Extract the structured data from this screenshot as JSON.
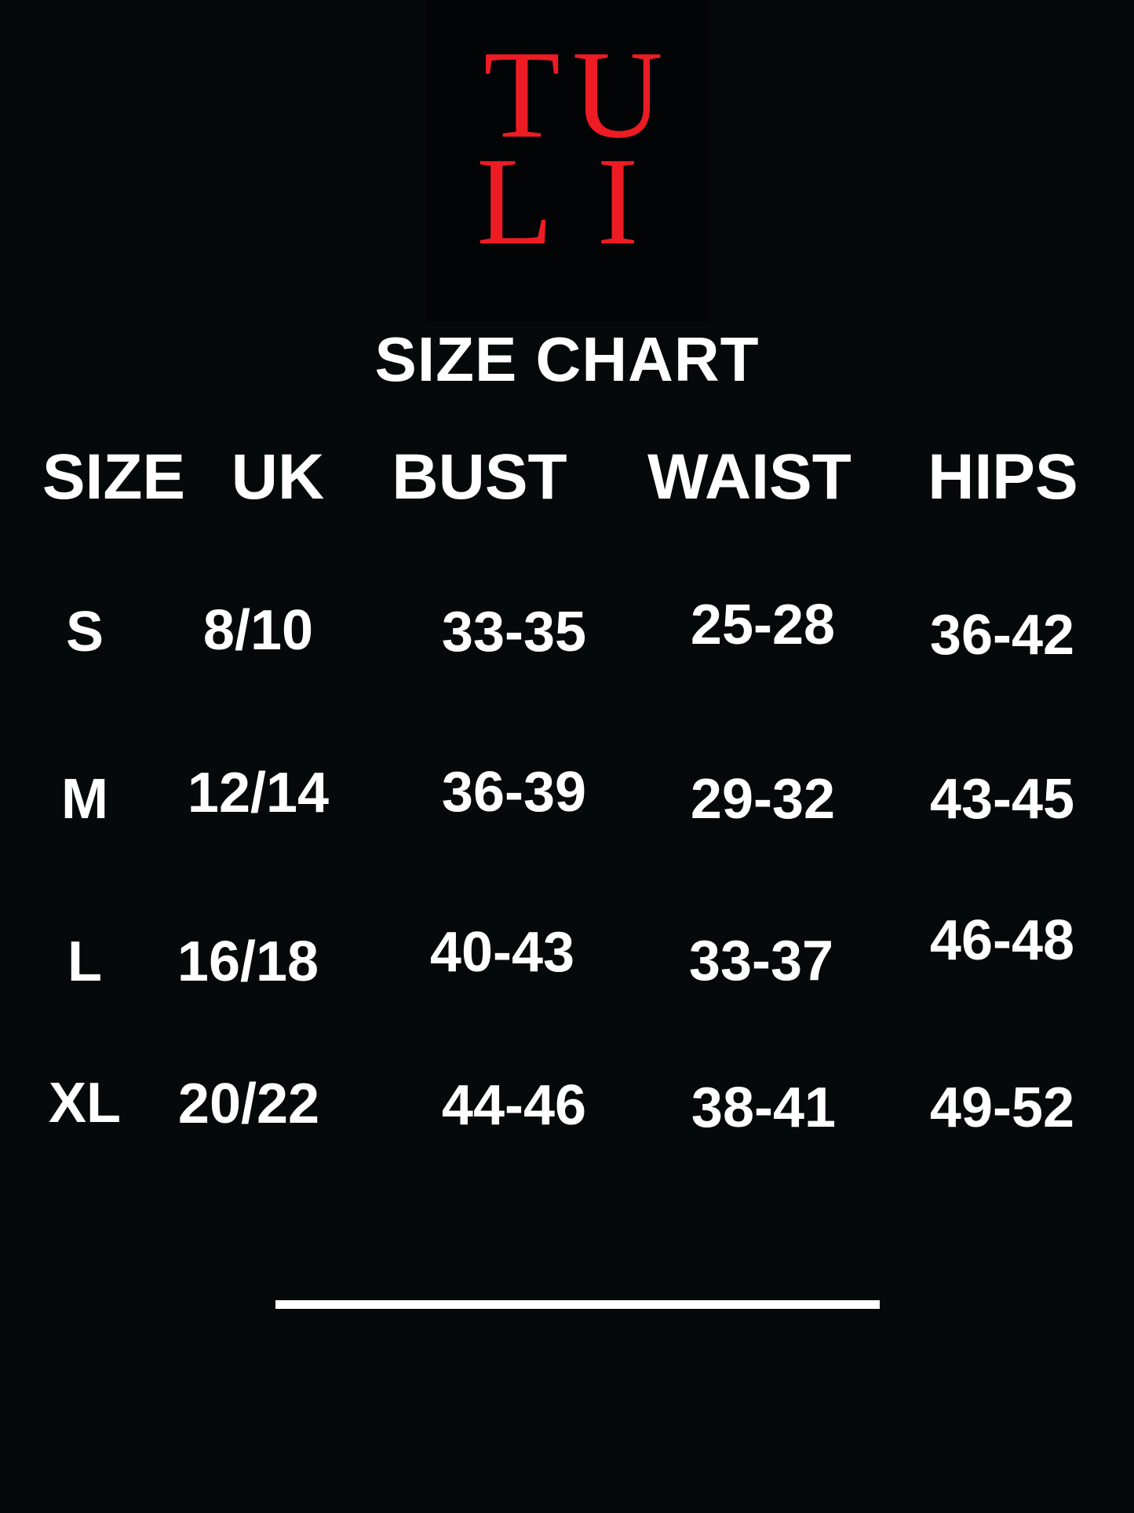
{
  "brand": {
    "logo_text": "TULI",
    "letters": [
      "T",
      "U",
      "L",
      "I"
    ],
    "color": "#ED1C24"
  },
  "title": "SIZE CHART",
  "columns": [
    "SIZE",
    "UK",
    "BUST",
    "WAIST",
    "HIPS"
  ],
  "rows": [
    [
      "S",
      "8/10",
      "33-35",
      "25-28",
      "36-42"
    ],
    [
      "M",
      "12/14",
      "36-39",
      "29-32",
      "43-45"
    ],
    [
      "L",
      "16/18",
      "40-43",
      "33-37",
      "46-48"
    ],
    [
      "XL",
      "20/22",
      "44-46",
      "38-41",
      "49-52"
    ]
  ],
  "colors": {
    "background": "#050909",
    "text": "#FFFFFF"
  }
}
